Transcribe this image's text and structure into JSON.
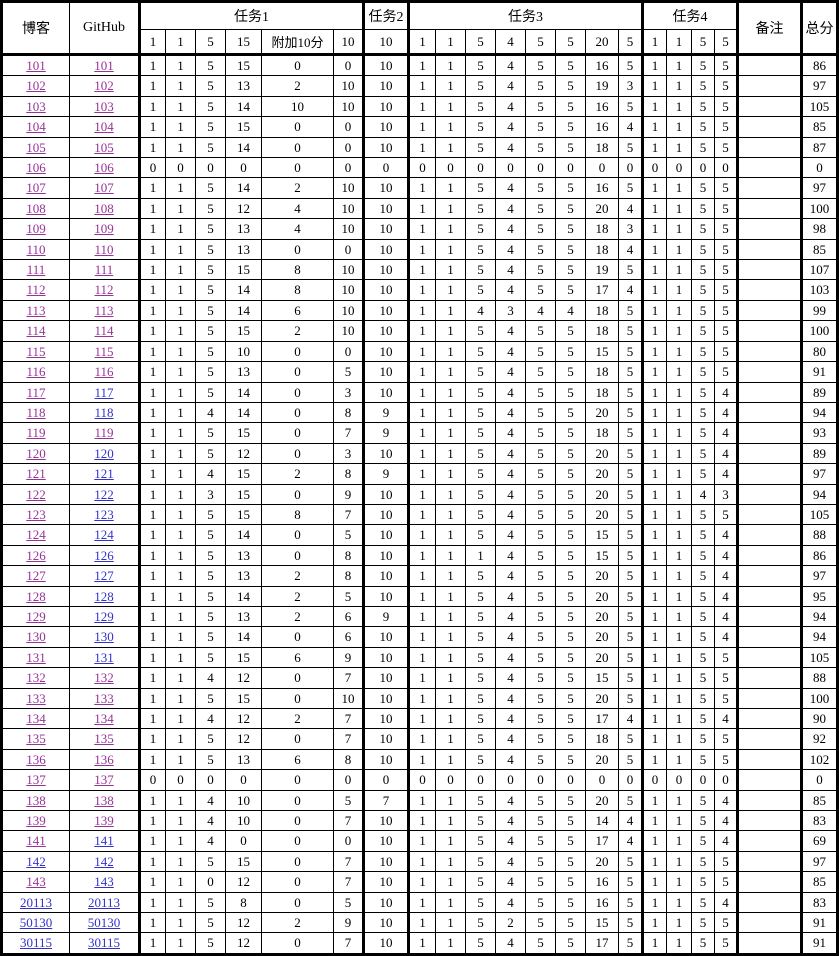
{
  "header": {
    "blog": "博客",
    "github": "GitHub",
    "remark": "备注",
    "total": "总分",
    "groups": [
      {
        "key": "task1",
        "label": "任务1",
        "subs": [
          "1",
          "1",
          "5",
          "15",
          "附加10分",
          "10"
        ]
      },
      {
        "key": "task2",
        "label": "任务2",
        "subs": [
          "10"
        ]
      },
      {
        "key": "task3",
        "label": "任务3",
        "subs": [
          "1",
          "1",
          "5",
          "4",
          "5",
          "5",
          "20",
          "5"
        ]
      },
      {
        "key": "task4",
        "label": "任务4",
        "subs": [
          "1",
          "1",
          "5",
          "5"
        ]
      }
    ]
  },
  "colors": {
    "background": "#FFFFFF",
    "text": "#000000",
    "border": "#000000",
    "link": "#3333CC",
    "link_visited": "#993399"
  },
  "rows": [
    {
      "id": "101",
      "blog_visited": true,
      "github_visited": true,
      "task1": [
        1,
        1,
        5,
        15,
        0,
        0
      ],
      "task2": 10,
      "task3": [
        1,
        1,
        5,
        4,
        5,
        5,
        16,
        5
      ],
      "task4": [
        1,
        1,
        5,
        5
      ],
      "remark": "",
      "total": 86
    },
    {
      "id": "102",
      "blog_visited": true,
      "github_visited": true,
      "task1": [
        1,
        1,
        5,
        13,
        2,
        10
      ],
      "task2": 10,
      "task3": [
        1,
        1,
        5,
        4,
        5,
        5,
        19,
        3
      ],
      "task4": [
        1,
        1,
        5,
        5
      ],
      "remark": "",
      "total": 97
    },
    {
      "id": "103",
      "blog_visited": true,
      "github_visited": true,
      "task1": [
        1,
        1,
        5,
        14,
        10,
        10
      ],
      "task2": 10,
      "task3": [
        1,
        1,
        5,
        4,
        5,
        5,
        16,
        5
      ],
      "task4": [
        1,
        1,
        5,
        5
      ],
      "remark": "",
      "total": 105
    },
    {
      "id": "104",
      "blog_visited": true,
      "github_visited": true,
      "task1": [
        1,
        1,
        5,
        15,
        0,
        0
      ],
      "task2": 10,
      "task3": [
        1,
        1,
        5,
        4,
        5,
        5,
        16,
        4
      ],
      "task4": [
        1,
        1,
        5,
        5
      ],
      "remark": "",
      "total": 85
    },
    {
      "id": "105",
      "blog_visited": true,
      "github_visited": true,
      "task1": [
        1,
        1,
        5,
        14,
        0,
        0
      ],
      "task2": 10,
      "task3": [
        1,
        1,
        5,
        4,
        5,
        5,
        18,
        5
      ],
      "task4": [
        1,
        1,
        5,
        5
      ],
      "remark": "",
      "total": 87
    },
    {
      "id": "106",
      "blog_visited": true,
      "github_visited": true,
      "task1": [
        0,
        0,
        0,
        0,
        0,
        0
      ],
      "task2": 0,
      "task3": [
        0,
        0,
        0,
        0,
        0,
        0,
        0,
        0
      ],
      "task4": [
        0,
        0,
        0,
        0
      ],
      "remark": "",
      "total": 0
    },
    {
      "id": "107",
      "blog_visited": true,
      "github_visited": true,
      "task1": [
        1,
        1,
        5,
        14,
        2,
        10
      ],
      "task2": 10,
      "task3": [
        1,
        1,
        5,
        4,
        5,
        5,
        16,
        5
      ],
      "task4": [
        1,
        1,
        5,
        5
      ],
      "remark": "",
      "total": 97
    },
    {
      "id": "108",
      "blog_visited": true,
      "github_visited": true,
      "task1": [
        1,
        1,
        5,
        12,
        4,
        10
      ],
      "task2": 10,
      "task3": [
        1,
        1,
        5,
        4,
        5,
        5,
        20,
        4
      ],
      "task4": [
        1,
        1,
        5,
        5
      ],
      "remark": "",
      "total": 100
    },
    {
      "id": "109",
      "blog_visited": true,
      "github_visited": true,
      "task1": [
        1,
        1,
        5,
        13,
        4,
        10
      ],
      "task2": 10,
      "task3": [
        1,
        1,
        5,
        4,
        5,
        5,
        18,
        3
      ],
      "task4": [
        1,
        1,
        5,
        5
      ],
      "remark": "",
      "total": 98
    },
    {
      "id": "110",
      "blog_visited": true,
      "github_visited": true,
      "task1": [
        1,
        1,
        5,
        13,
        0,
        0
      ],
      "task2": 10,
      "task3": [
        1,
        1,
        5,
        4,
        5,
        5,
        18,
        4
      ],
      "task4": [
        1,
        1,
        5,
        5
      ],
      "remark": "",
      "total": 85
    },
    {
      "id": "111",
      "blog_visited": true,
      "github_visited": true,
      "task1": [
        1,
        1,
        5,
        15,
        8,
        10
      ],
      "task2": 10,
      "task3": [
        1,
        1,
        5,
        4,
        5,
        5,
        19,
        5
      ],
      "task4": [
        1,
        1,
        5,
        5
      ],
      "remark": "",
      "total": 107
    },
    {
      "id": "112",
      "blog_visited": true,
      "github_visited": true,
      "task1": [
        1,
        1,
        5,
        14,
        8,
        10
      ],
      "task2": 10,
      "task3": [
        1,
        1,
        5,
        4,
        5,
        5,
        17,
        4
      ],
      "task4": [
        1,
        1,
        5,
        5
      ],
      "remark": "",
      "total": 103
    },
    {
      "id": "113",
      "blog_visited": true,
      "github_visited": true,
      "task1": [
        1,
        1,
        5,
        14,
        6,
        10
      ],
      "task2": 10,
      "task3": [
        1,
        1,
        4,
        3,
        4,
        4,
        18,
        5
      ],
      "task4": [
        1,
        1,
        5,
        5
      ],
      "remark": "",
      "total": 99
    },
    {
      "id": "114",
      "blog_visited": true,
      "github_visited": true,
      "task1": [
        1,
        1,
        5,
        15,
        2,
        10
      ],
      "task2": 10,
      "task3": [
        1,
        1,
        5,
        4,
        5,
        5,
        18,
        5
      ],
      "task4": [
        1,
        1,
        5,
        5
      ],
      "remark": "",
      "total": 100
    },
    {
      "id": "115",
      "blog_visited": true,
      "github_visited": true,
      "task1": [
        1,
        1,
        5,
        10,
        0,
        0
      ],
      "task2": 10,
      "task3": [
        1,
        1,
        5,
        4,
        5,
        5,
        15,
        5
      ],
      "task4": [
        1,
        1,
        5,
        5
      ],
      "remark": "",
      "total": 80
    },
    {
      "id": "116",
      "blog_visited": true,
      "github_visited": true,
      "task1": [
        1,
        1,
        5,
        13,
        0,
        5
      ],
      "task2": 10,
      "task3": [
        1,
        1,
        5,
        4,
        5,
        5,
        18,
        5
      ],
      "task4": [
        1,
        1,
        5,
        5
      ],
      "remark": "",
      "total": 91
    },
    {
      "id": "117",
      "blog_visited": true,
      "github_visited": false,
      "task1": [
        1,
        1,
        5,
        14,
        0,
        3
      ],
      "task2": 10,
      "task3": [
        1,
        1,
        5,
        4,
        5,
        5,
        18,
        5
      ],
      "task4": [
        1,
        1,
        5,
        4
      ],
      "remark": "",
      "total": 89
    },
    {
      "id": "118",
      "blog_visited": true,
      "github_visited": false,
      "task1": [
        1,
        1,
        4,
        14,
        0,
        8
      ],
      "task2": 9,
      "task3": [
        1,
        1,
        5,
        4,
        5,
        5,
        20,
        5
      ],
      "task4": [
        1,
        1,
        5,
        4
      ],
      "remark": "",
      "total": 94
    },
    {
      "id": "119",
      "blog_visited": true,
      "github_visited": true,
      "task1": [
        1,
        1,
        5,
        15,
        0,
        7
      ],
      "task2": 9,
      "task3": [
        1,
        1,
        5,
        4,
        5,
        5,
        18,
        5
      ],
      "task4": [
        1,
        1,
        5,
        4
      ],
      "remark": "",
      "total": 93
    },
    {
      "id": "120",
      "blog_visited": true,
      "github_visited": false,
      "task1": [
        1,
        1,
        5,
        12,
        0,
        3
      ],
      "task2": 10,
      "task3": [
        1,
        1,
        5,
        4,
        5,
        5,
        20,
        5
      ],
      "task4": [
        1,
        1,
        5,
        4
      ],
      "remark": "",
      "total": 89
    },
    {
      "id": "121",
      "blog_visited": true,
      "github_visited": false,
      "task1": [
        1,
        1,
        4,
        15,
        2,
        8
      ],
      "task2": 9,
      "task3": [
        1,
        1,
        5,
        4,
        5,
        5,
        20,
        5
      ],
      "task4": [
        1,
        1,
        5,
        4
      ],
      "remark": "",
      "total": 97
    },
    {
      "id": "122",
      "blog_visited": true,
      "github_visited": false,
      "task1": [
        1,
        1,
        3,
        15,
        0,
        9
      ],
      "task2": 10,
      "task3": [
        1,
        1,
        5,
        4,
        5,
        5,
        20,
        5
      ],
      "task4": [
        1,
        1,
        4,
        3
      ],
      "remark": "",
      "total": 94
    },
    {
      "id": "123",
      "blog_visited": true,
      "github_visited": false,
      "task1": [
        1,
        1,
        5,
        15,
        8,
        7
      ],
      "task2": 10,
      "task3": [
        1,
        1,
        5,
        4,
        5,
        5,
        20,
        5
      ],
      "task4": [
        1,
        1,
        5,
        5
      ],
      "remark": "",
      "total": 105
    },
    {
      "id": "124",
      "blog_visited": true,
      "github_visited": false,
      "task1": [
        1,
        1,
        5,
        14,
        0,
        5
      ],
      "task2": 10,
      "task3": [
        1,
        1,
        5,
        4,
        5,
        5,
        15,
        5
      ],
      "task4": [
        1,
        1,
        5,
        4
      ],
      "remark": "",
      "total": 88
    },
    {
      "id": "126",
      "blog_visited": true,
      "github_visited": false,
      "task1": [
        1,
        1,
        5,
        13,
        0,
        8
      ],
      "task2": 10,
      "task3": [
        1,
        1,
        1,
        4,
        5,
        5,
        15,
        5
      ],
      "task4": [
        1,
        1,
        5,
        4
      ],
      "remark": "",
      "total": 86
    },
    {
      "id": "127",
      "blog_visited": true,
      "github_visited": false,
      "task1": [
        1,
        1,
        5,
        13,
        2,
        8
      ],
      "task2": 10,
      "task3": [
        1,
        1,
        5,
        4,
        5,
        5,
        20,
        5
      ],
      "task4": [
        1,
        1,
        5,
        4
      ],
      "remark": "",
      "total": 97
    },
    {
      "id": "128",
      "blog_visited": true,
      "github_visited": false,
      "task1": [
        1,
        1,
        5,
        14,
        2,
        5
      ],
      "task2": 10,
      "task3": [
        1,
        1,
        5,
        4,
        5,
        5,
        20,
        5
      ],
      "task4": [
        1,
        1,
        5,
        4
      ],
      "remark": "",
      "total": 95
    },
    {
      "id": "129",
      "blog_visited": true,
      "github_visited": false,
      "task1": [
        1,
        1,
        5,
        13,
        2,
        6
      ],
      "task2": 9,
      "task3": [
        1,
        1,
        5,
        4,
        5,
        5,
        20,
        5
      ],
      "task4": [
        1,
        1,
        5,
        4
      ],
      "remark": "",
      "total": 94
    },
    {
      "id": "130",
      "blog_visited": true,
      "github_visited": false,
      "task1": [
        1,
        1,
        5,
        14,
        0,
        6
      ],
      "task2": 10,
      "task3": [
        1,
        1,
        5,
        4,
        5,
        5,
        20,
        5
      ],
      "task4": [
        1,
        1,
        5,
        4
      ],
      "remark": "",
      "total": 94
    },
    {
      "id": "131",
      "blog_visited": true,
      "github_visited": false,
      "task1": [
        1,
        1,
        5,
        15,
        6,
        9
      ],
      "task2": 10,
      "task3": [
        1,
        1,
        5,
        4,
        5,
        5,
        20,
        5
      ],
      "task4": [
        1,
        1,
        5,
        5
      ],
      "remark": "",
      "total": 105
    },
    {
      "id": "132",
      "blog_visited": true,
      "github_visited": true,
      "task1": [
        1,
        1,
        4,
        12,
        0,
        7
      ],
      "task2": 10,
      "task3": [
        1,
        1,
        5,
        4,
        5,
        5,
        15,
        5
      ],
      "task4": [
        1,
        1,
        5,
        5
      ],
      "remark": "",
      "total": 88
    },
    {
      "id": "133",
      "blog_visited": true,
      "github_visited": true,
      "task1": [
        1,
        1,
        5,
        15,
        0,
        10
      ],
      "task2": 10,
      "task3": [
        1,
        1,
        5,
        4,
        5,
        5,
        20,
        5
      ],
      "task4": [
        1,
        1,
        5,
        5
      ],
      "remark": "",
      "total": 100
    },
    {
      "id": "134",
      "blog_visited": true,
      "github_visited": true,
      "task1": [
        1,
        1,
        4,
        12,
        2,
        7
      ],
      "task2": 10,
      "task3": [
        1,
        1,
        5,
        4,
        5,
        5,
        17,
        4
      ],
      "task4": [
        1,
        1,
        5,
        4
      ],
      "remark": "",
      "total": 90
    },
    {
      "id": "135",
      "blog_visited": true,
      "github_visited": true,
      "task1": [
        1,
        1,
        5,
        12,
        0,
        7
      ],
      "task2": 10,
      "task3": [
        1,
        1,
        5,
        4,
        5,
        5,
        18,
        5
      ],
      "task4": [
        1,
        1,
        5,
        5
      ],
      "remark": "",
      "total": 92
    },
    {
      "id": "136",
      "blog_visited": true,
      "github_visited": true,
      "task1": [
        1,
        1,
        5,
        13,
        6,
        8
      ],
      "task2": 10,
      "task3": [
        1,
        1,
        5,
        4,
        5,
        5,
        20,
        5
      ],
      "task4": [
        1,
        1,
        5,
        5
      ],
      "remark": "",
      "total": 102
    },
    {
      "id": "137",
      "blog_visited": true,
      "github_visited": true,
      "task1": [
        0,
        0,
        0,
        0,
        0,
        0
      ],
      "task2": 0,
      "task3": [
        0,
        0,
        0,
        0,
        0,
        0,
        0,
        0
      ],
      "task4": [
        0,
        0,
        0,
        0
      ],
      "remark": "",
      "total": 0
    },
    {
      "id": "138",
      "blog_visited": true,
      "github_visited": true,
      "task1": [
        1,
        1,
        4,
        10,
        0,
        5
      ],
      "task2": 7,
      "task3": [
        1,
        1,
        5,
        4,
        5,
        5,
        20,
        5
      ],
      "task4": [
        1,
        1,
        5,
        4
      ],
      "remark": "",
      "total": 85
    },
    {
      "id": "139",
      "blog_visited": true,
      "github_visited": true,
      "task1": [
        1,
        1,
        4,
        10,
        0,
        7
      ],
      "task2": 10,
      "task3": [
        1,
        1,
        5,
        4,
        5,
        5,
        14,
        4
      ],
      "task4": [
        1,
        1,
        5,
        4
      ],
      "remark": "",
      "total": 83
    },
    {
      "id": "141",
      "blog_visited": true,
      "github_visited": false,
      "task1": [
        1,
        1,
        4,
        0,
        0,
        0
      ],
      "task2": 10,
      "task3": [
        1,
        1,
        5,
        4,
        5,
        5,
        17,
        4
      ],
      "task4": [
        1,
        1,
        5,
        4
      ],
      "remark": "",
      "total": 69
    },
    {
      "id": "142",
      "blog_visited": false,
      "github_visited": false,
      "task1": [
        1,
        1,
        5,
        15,
        0,
        7
      ],
      "task2": 10,
      "task3": [
        1,
        1,
        5,
        4,
        5,
        5,
        20,
        5
      ],
      "task4": [
        1,
        1,
        5,
        5
      ],
      "remark": "",
      "total": 97
    },
    {
      "id": "143",
      "blog_visited": true,
      "github_visited": false,
      "task1": [
        1,
        1,
        0,
        12,
        0,
        7
      ],
      "task2": 10,
      "task3": [
        1,
        1,
        5,
        4,
        5,
        5,
        16,
        5
      ],
      "task4": [
        1,
        1,
        5,
        5
      ],
      "remark": "",
      "total": 85
    },
    {
      "id": "20113",
      "blog_visited": false,
      "github_visited": false,
      "task1": [
        1,
        1,
        5,
        8,
        0,
        5
      ],
      "task2": 10,
      "task3": [
        1,
        1,
        5,
        4,
        5,
        5,
        16,
        5
      ],
      "task4": [
        1,
        1,
        5,
        4
      ],
      "remark": "",
      "total": 83
    },
    {
      "id": "50130",
      "blog_visited": false,
      "github_visited": false,
      "task1": [
        1,
        1,
        5,
        12,
        2,
        9
      ],
      "task2": 10,
      "task3": [
        1,
        1,
        5,
        2,
        5,
        5,
        15,
        5
      ],
      "task4": [
        1,
        1,
        5,
        5
      ],
      "remark": "",
      "total": 91
    },
    {
      "id": "30115",
      "blog_visited": false,
      "github_visited": false,
      "task1": [
        1,
        1,
        5,
        12,
        0,
        7
      ],
      "task2": 10,
      "task3": [
        1,
        1,
        5,
        4,
        5,
        5,
        17,
        5
      ],
      "task4": [
        1,
        1,
        5,
        5
      ],
      "remark": "",
      "total": 91
    }
  ]
}
